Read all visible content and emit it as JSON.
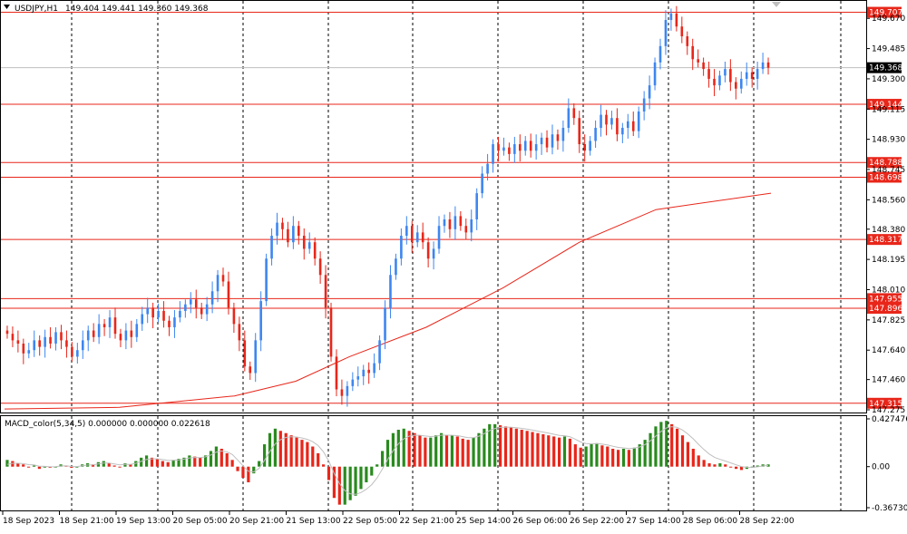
{
  "header": {
    "symbol_tf": "USDJPY,H1",
    "ohlc": "149.404 149.441 149.360 149.368",
    "macd_title": "MACD_color(5,34,5) 0.000000 0.000000 0.022618"
  },
  "colors": {
    "bull": "#3d86f0",
    "bear": "#e8261a",
    "level": "#e8261a",
    "ma": "#e8261a",
    "hist_up": "#2a8a1f",
    "hist_down": "#e8261a",
    "signal": "#bfbfbf",
    "grid": "#000000"
  },
  "chart_data": [
    {
      "type": "candlestick",
      "symbol": "USDJPY",
      "timeframe": "H1",
      "ylim": [
        147.275,
        149.76
      ],
      "price_ticks": [
        "149.670",
        "149.485",
        "149.300",
        "149.115",
        "148.930",
        "148.745",
        "148.560",
        "148.380",
        "148.195",
        "148.010",
        "147.825",
        "147.640",
        "147.460",
        "147.275"
      ],
      "time_ticks": [
        "18 Sep 2023",
        "18 Sep 21:00",
        "19 Sep 13:00",
        "20 Sep 05:00",
        "20 Sep 21:00",
        "21 Sep 13:00",
        "22 Sep 05:00",
        "22 Sep 21:00",
        "25 Sep 14:00",
        "26 Sep 06:00",
        "26 Sep 22:00",
        "27 Sep 14:00",
        "28 Sep 06:00",
        "28 Sep 22:00"
      ],
      "current_price": "149.368",
      "levels": [
        "149.707",
        "149.144",
        "148.788",
        "148.698",
        "148.317",
        "147.955",
        "147.896",
        "147.315"
      ],
      "ma_line": [
        [
          0,
          147.28
        ],
        [
          0.15,
          147.29
        ],
        [
          0.3,
          147.36
        ],
        [
          0.38,
          147.45
        ],
        [
          0.45,
          147.6
        ],
        [
          0.55,
          147.78
        ],
        [
          0.65,
          148.02
        ],
        [
          0.75,
          148.3
        ],
        [
          0.85,
          148.5
        ],
        [
          1.0,
          148.6
        ]
      ],
      "candles_close": [
        147.74,
        147.7,
        147.68,
        147.62,
        147.64,
        147.7,
        147.66,
        147.72,
        147.68,
        147.75,
        147.7,
        147.66,
        147.6,
        147.64,
        147.7,
        147.76,
        147.72,
        147.8,
        147.78,
        147.84,
        147.74,
        147.7,
        147.76,
        147.72,
        147.8,
        147.86,
        147.9,
        147.84,
        147.88,
        147.82,
        147.78,
        147.84,
        147.88,
        147.92,
        147.95,
        147.9,
        147.86,
        147.92,
        148.0,
        148.1,
        148.06,
        147.9,
        147.8,
        147.7,
        147.54,
        147.5,
        147.7,
        147.94,
        148.2,
        148.34,
        148.42,
        148.38,
        148.3,
        148.4,
        148.34,
        148.26,
        148.3,
        148.2,
        148.1,
        147.9,
        147.6,
        147.4,
        147.36,
        147.42,
        147.46,
        147.48,
        147.52,
        147.5,
        147.56,
        147.7,
        147.9,
        148.1,
        148.2,
        148.34,
        148.4,
        148.3,
        148.36,
        148.3,
        148.2,
        148.26,
        148.4,
        148.44,
        148.38,
        148.46,
        148.4,
        148.36,
        148.44,
        148.6,
        148.72,
        148.78,
        148.9,
        148.86,
        148.88,
        148.84,
        148.9,
        148.86,
        148.92,
        148.86,
        148.9,
        148.94,
        148.88,
        148.96,
        148.92,
        149.0,
        149.12,
        149.06,
        148.9,
        148.86,
        148.92,
        149.0,
        149.08,
        149.02,
        149.06,
        148.96,
        149.0,
        149.04,
        148.98,
        149.1,
        149.18,
        149.26,
        149.4,
        149.5,
        149.66,
        149.7,
        149.62,
        149.56,
        149.5,
        149.42,
        149.4,
        149.36,
        149.3,
        149.26,
        149.32,
        149.36,
        149.28,
        149.24,
        149.3,
        149.34,
        149.3,
        149.36,
        149.4,
        149.368
      ],
      "macd": {
        "ylim": [
          -0.367305,
          0.427476
        ],
        "ticks": [
          "0.427476",
          "0.00",
          "-0.367305"
        ],
        "hist": [
          0.06,
          0.05,
          0.03,
          0.02,
          0.0,
          0.01,
          -0.02,
          0.0,
          -0.01,
          0.0,
          0.02,
          0.01,
          -0.01,
          0.0,
          0.02,
          0.03,
          0.02,
          0.04,
          0.05,
          0.03,
          0.01,
          0.0,
          0.03,
          0.02,
          0.05,
          0.08,
          0.1,
          0.08,
          0.07,
          0.05,
          0.04,
          0.06,
          0.07,
          0.08,
          0.1,
          0.09,
          0.08,
          0.1,
          0.14,
          0.18,
          0.16,
          0.12,
          0.06,
          -0.04,
          -0.1,
          -0.14,
          -0.06,
          0.05,
          0.2,
          0.3,
          0.34,
          0.32,
          0.3,
          0.28,
          0.26,
          0.24,
          0.22,
          0.18,
          0.12,
          0.02,
          -0.12,
          -0.28,
          -0.34,
          -0.34,
          -0.3,
          -0.26,
          -0.2,
          -0.14,
          -0.08,
          0.02,
          0.14,
          0.24,
          0.3,
          0.33,
          0.34,
          0.32,
          0.3,
          0.28,
          0.26,
          0.26,
          0.28,
          0.3,
          0.28,
          0.28,
          0.27,
          0.25,
          0.24,
          0.26,
          0.3,
          0.34,
          0.38,
          0.38,
          0.37,
          0.36,
          0.35,
          0.34,
          0.33,
          0.32,
          0.31,
          0.3,
          0.29,
          0.28,
          0.27,
          0.26,
          0.27,
          0.25,
          0.2,
          0.17,
          0.18,
          0.2,
          0.21,
          0.19,
          0.18,
          0.16,
          0.15,
          0.16,
          0.15,
          0.17,
          0.2,
          0.24,
          0.3,
          0.36,
          0.4,
          0.41,
          0.38,
          0.34,
          0.28,
          0.22,
          0.16,
          0.1,
          0.06,
          0.03,
          0.02,
          0.03,
          0.02,
          0.0,
          -0.02,
          -0.03,
          -0.02,
          -0.01,
          0.01,
          0.02,
          0.02
        ]
      }
    }
  ]
}
